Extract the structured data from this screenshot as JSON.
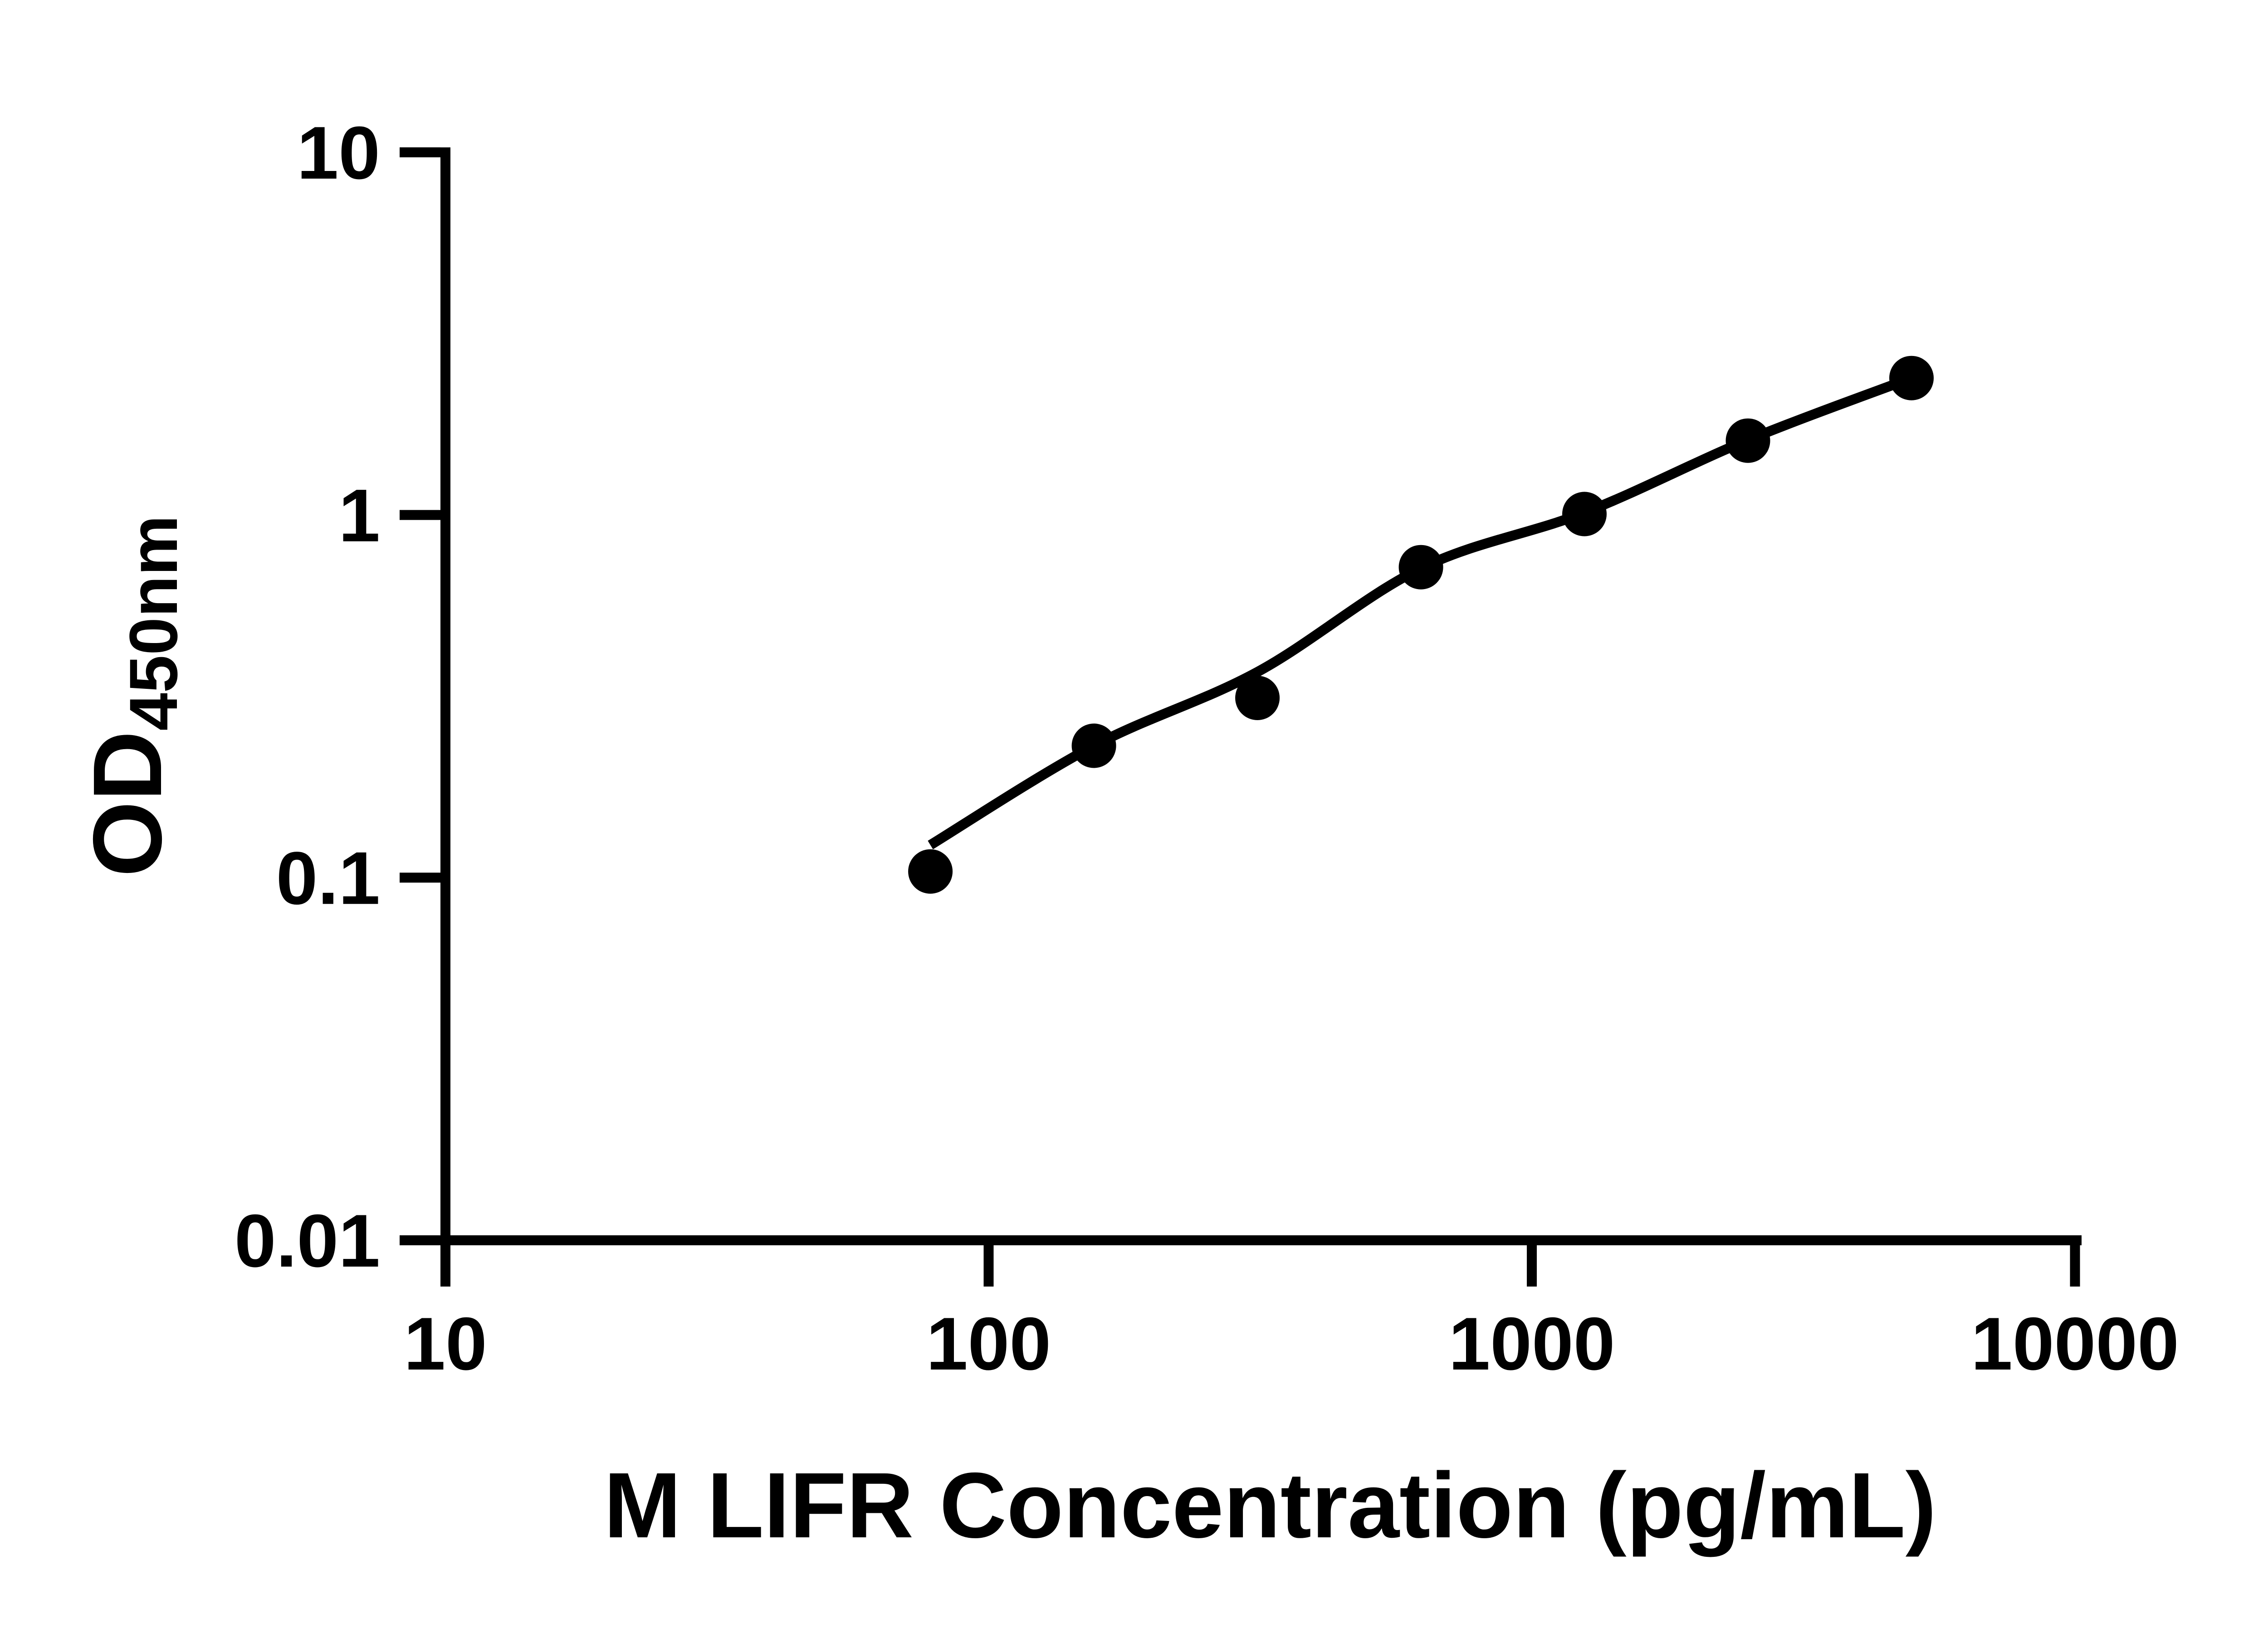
{
  "figure": {
    "background_color": "#ffffff",
    "ink_color": "#000000"
  },
  "chart_data": {
    "type": "scatter",
    "subtype": "log-log standard curve with fitted line",
    "title": "",
    "grid": false,
    "legend": null,
    "x_axis": {
      "label": "M LIFR Concentration (pg/mL)",
      "scale": "log",
      "range": [
        10,
        10000
      ],
      "ticks": [
        {
          "value": 10,
          "label": "10"
        },
        {
          "value": 100,
          "label": "100"
        },
        {
          "value": 1000,
          "label": "1000"
        },
        {
          "value": 10000,
          "label": "10000"
        }
      ]
    },
    "y_axis": {
      "label_main": "OD",
      "label_sub": "450nm",
      "scale": "log",
      "range": [
        0.01,
        10
      ],
      "ticks": [
        {
          "value": 10,
          "label": "10"
        },
        {
          "value": 1,
          "label": "1"
        },
        {
          "value": 0.1,
          "label": "0.1"
        },
        {
          "value": 0.01,
          "label": "0.01"
        }
      ]
    },
    "series": [
      {
        "name": "standard curve data points",
        "marker": "filled-circle",
        "color": "#000000",
        "points": [
          {
            "x": 78.125,
            "y": 0.104
          },
          {
            "x": 156.25,
            "y": 0.231
          },
          {
            "x": 312.5,
            "y": 0.313
          },
          {
            "x": 625,
            "y": 0.718
          },
          {
            "x": 1250,
            "y": 1.006
          },
          {
            "x": 2500,
            "y": 1.603
          },
          {
            "x": 5000,
            "y": 2.385
          }
        ]
      }
    ],
    "fit_curve": {
      "name": "fitted curve",
      "color": "#000000",
      "points": [
        {
          "x": 78.125,
          "y": 0.123
        },
        {
          "x": 156.25,
          "y": 0.231
        },
        {
          "x": 312.5,
          "y": 0.369
        },
        {
          "x": 625,
          "y": 0.713
        },
        {
          "x": 1250,
          "y": 1.015
        },
        {
          "x": 2500,
          "y": 1.61
        },
        {
          "x": 5000,
          "y": 2.385
        }
      ]
    }
  }
}
